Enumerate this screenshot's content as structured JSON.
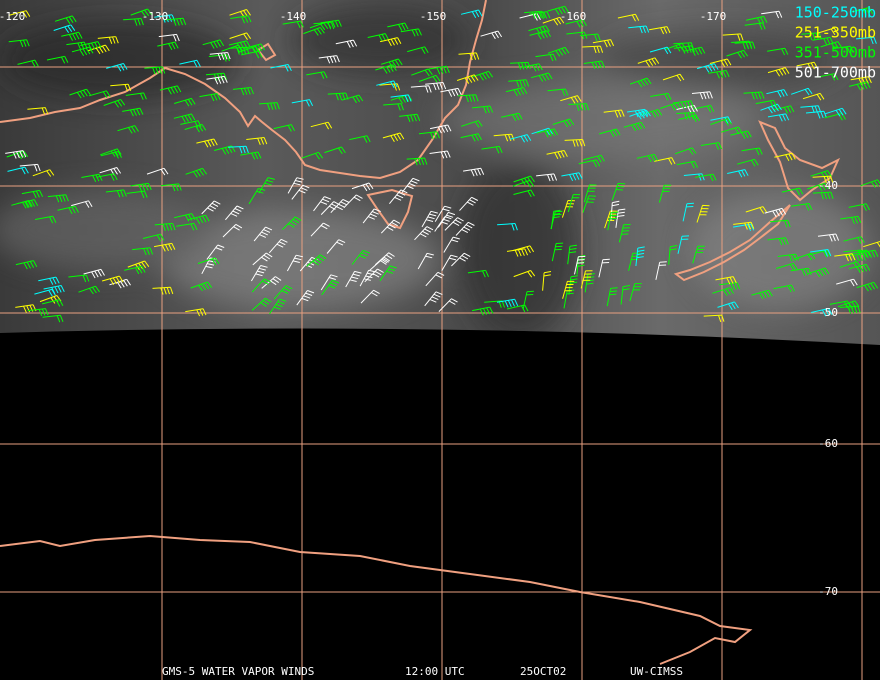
{
  "map": {
    "longitude_labels": [
      "-120",
      "-130",
      "-140",
      "-150",
      "-160",
      "-170"
    ],
    "latitude_labels": [
      "-40",
      "-50",
      "-60",
      "-70"
    ],
    "legend": [
      {
        "label": "150-250mb",
        "color": "#00ffff"
      },
      {
        "label": "251-350mb",
        "color": "#ffff00"
      },
      {
        "label": "351-500mb",
        "color": "#00ff00"
      },
      {
        "label": "501-700mb",
        "color": "#ffffff"
      }
    ],
    "footer": [
      "GMS-5 WATER VAPOR WINDS",
      "12:00 UTC",
      "25OCT02",
      "UW-CIMSS"
    ]
  }
}
